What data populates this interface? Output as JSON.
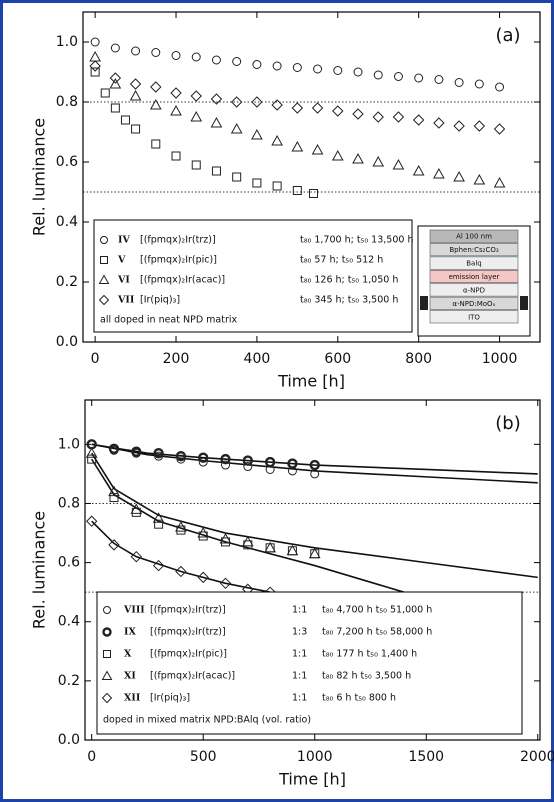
{
  "chart_data": [
    {
      "type": "scatter",
      "panel_label": "(a)",
      "xlabel": "Time [h]",
      "ylabel": "Rel. luminance",
      "xlim": [
        -30,
        1100
      ],
      "ylim": [
        0,
        1.1
      ],
      "xticks": [
        0,
        200,
        400,
        600,
        800,
        1000
      ],
      "yticks": [
        {
          "value": 0,
          "label": "0.0"
        },
        0.2,
        0.4,
        0.6,
        0.8,
        {
          "value": 1,
          "label": "1.0"
        }
      ],
      "hlines": [
        0.8,
        0.5
      ],
      "series": [
        {
          "id": "IV",
          "name": "[(fpmqx)₂Ir(trz)]",
          "lifetime": "t₈₀ 1,700 h; t₅₀ 13,500 h",
          "marker": "circle",
          "color": "#222222",
          "x": [
            0,
            50,
            100,
            150,
            200,
            250,
            300,
            350,
            400,
            450,
            500,
            550,
            600,
            650,
            700,
            750,
            800,
            850,
            900,
            950,
            1000
          ],
          "values": [
            1.0,
            0.98,
            0.97,
            0.965,
            0.955,
            0.95,
            0.94,
            0.935,
            0.925,
            0.92,
            0.915,
            0.91,
            0.905,
            0.9,
            0.89,
            0.885,
            0.88,
            0.875,
            0.865,
            0.86,
            0.85
          ]
        },
        {
          "id": "V",
          "name": "[(fpmqx)₂Ir(pic)]",
          "lifetime": "t₈₀ 57 h; t₅₀ 512 h",
          "marker": "square",
          "color": "#222222",
          "x": [
            0,
            25,
            50,
            75,
            100,
            150,
            200,
            250,
            300,
            350,
            400,
            450,
            500,
            540
          ],
          "values": [
            0.9,
            0.83,
            0.78,
            0.74,
            0.71,
            0.66,
            0.62,
            0.59,
            0.57,
            0.55,
            0.53,
            0.52,
            0.505,
            0.495
          ]
        },
        {
          "id": "VI",
          "name": "[(fpmqx)₂Ir(acac)]",
          "lifetime": "t₈₀ 126 h; t₅₀ 1,050 h",
          "marker": "triangle",
          "color": "#222222",
          "x": [
            0,
            50,
            100,
            150,
            200,
            250,
            300,
            350,
            400,
            450,
            500,
            550,
            600,
            650,
            700,
            750,
            800,
            850,
            900,
            950,
            1000
          ],
          "values": [
            0.95,
            0.86,
            0.82,
            0.79,
            0.77,
            0.75,
            0.73,
            0.71,
            0.69,
            0.67,
            0.65,
            0.64,
            0.62,
            0.61,
            0.6,
            0.59,
            0.57,
            0.56,
            0.55,
            0.54,
            0.53
          ]
        },
        {
          "id": "VII",
          "name": "[Ir(piq)₃]",
          "lifetime": "t₈₀ 345 h; t₅₀ 3,500 h",
          "marker": "diamond",
          "color": "#222222",
          "x": [
            0,
            50,
            100,
            150,
            200,
            250,
            300,
            350,
            400,
            450,
            500,
            550,
            600,
            650,
            700,
            750,
            800,
            850,
            900,
            950,
            1000
          ],
          "values": [
            0.92,
            0.88,
            0.86,
            0.85,
            0.83,
            0.82,
            0.81,
            0.8,
            0.8,
            0.79,
            0.78,
            0.78,
            0.77,
            0.76,
            0.75,
            0.75,
            0.74,
            0.73,
            0.72,
            0.72,
            0.71
          ]
        }
      ],
      "legend_note": "all doped in neat NPD matrix",
      "inset": {
        "layers": [
          "Al 100 nm",
          "Bphen:Cs₂CO₃",
          "Balq",
          "emission layer",
          "α-NPD",
          "α-NPD:MoOₓ",
          "ITO"
        ],
        "colors": [
          "#b8b8b8",
          "#d8d8d8",
          "#eeeeee",
          "#f4c6c6",
          "#eeeeee",
          "#d8d8d8",
          "#eeeeee"
        ]
      }
    },
    {
      "type": "scatter",
      "panel_label": "(b)",
      "xlabel": "Time [h]",
      "ylabel": "Rel. luminance",
      "xlim": [
        -30,
        2010
      ],
      "ylim": [
        0,
        1.15
      ],
      "xticks": [
        0,
        500,
        1000,
        1500,
        2000
      ],
      "yticks": [
        {
          "value": 0,
          "label": "0.0"
        },
        0.2,
        0.4,
        0.6,
        0.8,
        {
          "value": 1,
          "label": "1.0"
        }
      ],
      "hlines": [
        0.8,
        0.5
      ],
      "series": [
        {
          "id": "VIII",
          "name": "[(fpmqx)₂Ir(trz)]",
          "ratio": "1:1",
          "lifetime": "t₈₀ 4,700 h   t₅₀ 51,000 h",
          "marker": "circle",
          "color": "#222222",
          "x": [
            0,
            100,
            200,
            300,
            400,
            500,
            600,
            700,
            800,
            900,
            1000
          ],
          "values": [
            1.0,
            0.98,
            0.97,
            0.96,
            0.95,
            0.94,
            0.93,
            0.925,
            0.915,
            0.91,
            0.9
          ],
          "fit_x": [
            0,
            250,
            500,
            1000,
            1500,
            2000
          ],
          "fit_values": [
            1.0,
            0.965,
            0.945,
            0.91,
            0.89,
            0.87
          ]
        },
        {
          "id": "IX",
          "name": "[(fpmqx)₂Ir(trz)]",
          "ratio": "1:3",
          "lifetime": "t₈₀ 7,200 h   t₅₀ 58,000 h",
          "marker": "circle-bold",
          "color": "#222222",
          "x": [
            0,
            100,
            200,
            300,
            400,
            500,
            600,
            700,
            800,
            900,
            1000
          ],
          "values": [
            1.0,
            0.985,
            0.975,
            0.97,
            0.96,
            0.955,
            0.95,
            0.945,
            0.94,
            0.935,
            0.93
          ],
          "fit_x": [
            0,
            250,
            500,
            1000,
            1500,
            2000
          ],
          "fit_values": [
            1.0,
            0.97,
            0.955,
            0.93,
            0.915,
            0.9
          ]
        },
        {
          "id": "X",
          "name": "[(fpmqx)₂Ir(pic)]",
          "ratio": "1:1",
          "lifetime": "t₈₀ 177 h   t₅₀ 1,400 h",
          "marker": "square",
          "color": "#222222",
          "x": [
            0,
            100,
            200,
            300,
            400,
            500,
            600,
            700,
            800,
            900,
            1000
          ],
          "values": [
            0.95,
            0.82,
            0.77,
            0.73,
            0.71,
            0.69,
            0.67,
            0.66,
            0.65,
            0.64,
            0.63
          ],
          "fit_x": [
            0,
            100,
            300,
            600,
            1000,
            1400
          ],
          "fit_values": [
            0.95,
            0.83,
            0.74,
            0.67,
            0.59,
            0.5
          ]
        },
        {
          "id": "XI",
          "name": "[(fpmqx)₂Ir(acac)]",
          "ratio": "1:1",
          "lifetime": "t₈₀ 82 h   t₅₀ 3,500 h",
          "marker": "triangle",
          "color": "#222222",
          "x": [
            0,
            100,
            200,
            300,
            400,
            500,
            600,
            700,
            800,
            900,
            1000
          ],
          "values": [
            0.97,
            0.84,
            0.78,
            0.75,
            0.72,
            0.7,
            0.68,
            0.67,
            0.65,
            0.64,
            0.63
          ],
          "fit_x": [
            0,
            100,
            300,
            600,
            1000,
            1500,
            2000
          ],
          "fit_values": [
            0.97,
            0.85,
            0.76,
            0.7,
            0.65,
            0.6,
            0.55
          ]
        },
        {
          "id": "XII",
          "name": "[Ir(piq)₃]",
          "ratio": "1:1",
          "lifetime": "t₈₀ 6 h   t₅₀ 800 h",
          "marker": "diamond",
          "color": "#222222",
          "x": [
            0,
            100,
            200,
            300,
            400,
            500,
            600,
            700,
            800
          ],
          "values": [
            0.74,
            0.66,
            0.62,
            0.59,
            0.57,
            0.55,
            0.53,
            0.51,
            0.5
          ],
          "fit_x": [
            0,
            100,
            200,
            400,
            600,
            800
          ],
          "fit_values": [
            0.74,
            0.665,
            0.62,
            0.57,
            0.53,
            0.5
          ]
        }
      ],
      "legend_note": "doped in mixed matrix NPD:BAlq (vol. ratio)"
    }
  ]
}
